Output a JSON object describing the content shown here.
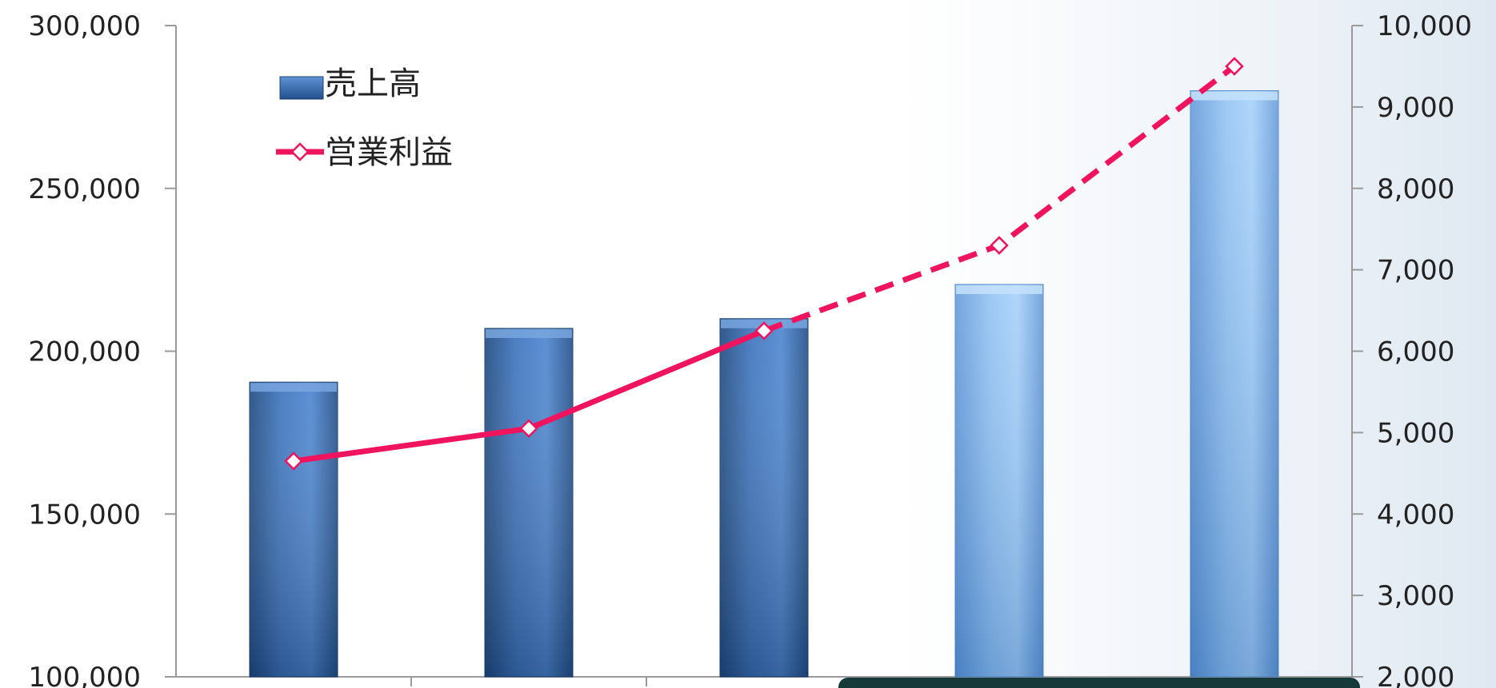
{
  "chart_data": {
    "type": "bar",
    "title": "",
    "xlabel": "",
    "ylabel": "",
    "y2label": "",
    "categories": [
      "",
      "",
      "",
      "",
      ""
    ],
    "ylim": [
      100000,
      300000
    ],
    "y2lim": [
      2000,
      10000
    ],
    "y_ticks": [
      "100,000",
      "150,000",
      "200,000",
      "250,000",
      "300,000"
    ],
    "y2_ticks": [
      "2,000",
      "3,000",
      "4,000",
      "5,000",
      "6,000",
      "7,000",
      "8,000",
      "9,000",
      "10,000"
    ],
    "series": [
      {
        "name": "売上高",
        "kind": "bar",
        "axis": "left",
        "values": [
          190500,
          207000,
          210000,
          220500,
          280000
        ],
        "actual_count": 3,
        "colors": {
          "actual": "#3a6eb5",
          "forecast": "#8fbff0"
        }
      },
      {
        "name": "営業利益",
        "kind": "line",
        "axis": "right",
        "values": [
          4650,
          5050,
          6250,
          7300,
          9500
        ],
        "actual_count": 3,
        "color": "#f0145f",
        "marker": "diamond"
      }
    ],
    "legend": "top-left",
    "grid": false
  }
}
